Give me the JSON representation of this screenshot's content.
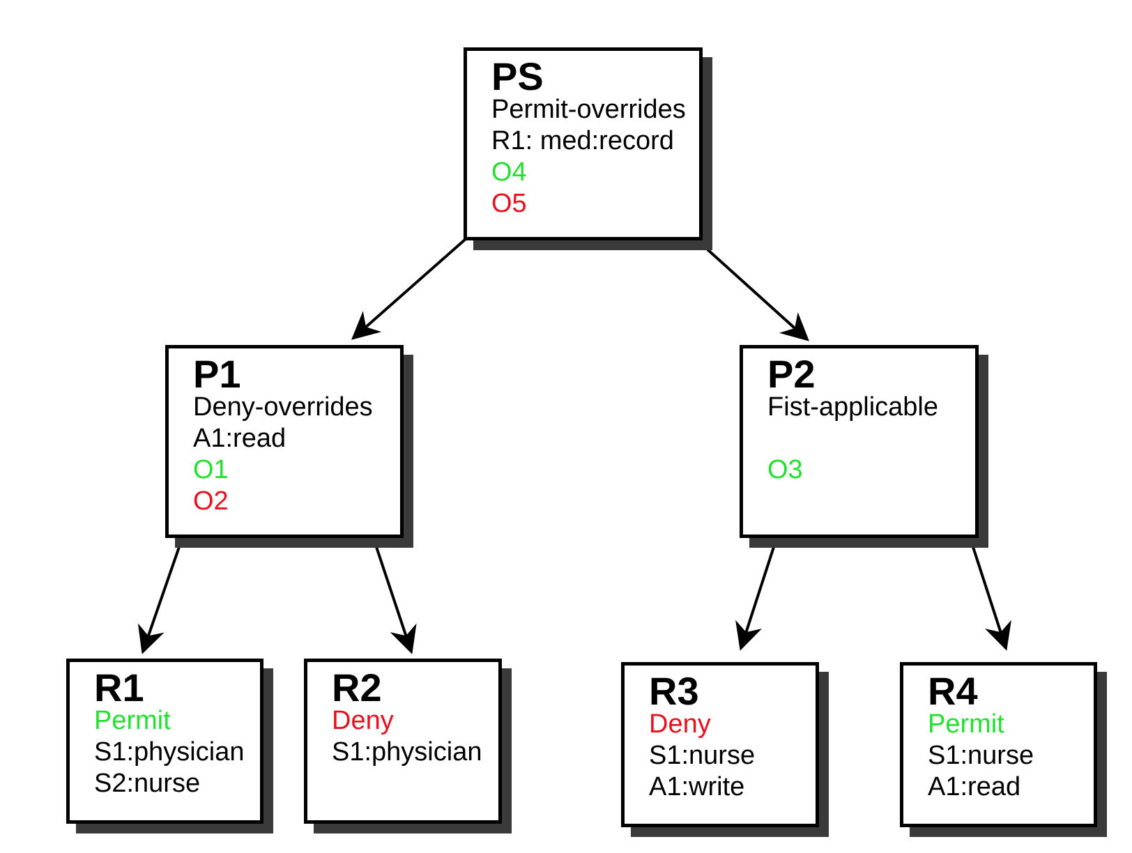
{
  "colors": {
    "green": "#22e02e",
    "red": "#e8101e",
    "shadow": "#3a3a3a"
  },
  "nodes": {
    "ps": {
      "title": "PS",
      "combining": "Permit-overrides",
      "target": "R1: med:record",
      "obligation_green": "O4",
      "obligation_red": "O5"
    },
    "p1": {
      "title": "P1",
      "combining": "Deny-overrides",
      "target": "A1:read",
      "obligation_green": "O1",
      "obligation_red": "O2"
    },
    "p2": {
      "title": "P2",
      "combining": "Fist-applicable",
      "obligation_green": "O3"
    },
    "r1": {
      "title": "R1",
      "effect": "Permit",
      "conditions": [
        "S1:physician",
        "S2:nurse"
      ]
    },
    "r2": {
      "title": "R2",
      "effect": "Deny",
      "conditions": [
        "S1:physician"
      ]
    },
    "r3": {
      "title": "R3",
      "effect": "Deny",
      "conditions": [
        "S1:nurse",
        "A1:write"
      ]
    },
    "r4": {
      "title": "R4",
      "effect": "Permit",
      "conditions": [
        "S1:nurse",
        "A1:read"
      ]
    }
  }
}
